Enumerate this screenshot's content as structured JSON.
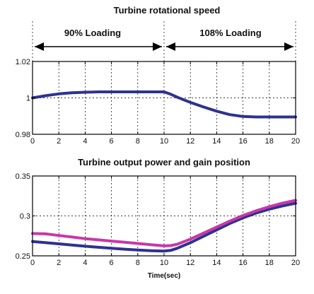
{
  "chart_data": [
    {
      "type": "line",
      "title": "Turbine rotational speed",
      "xlabel": "",
      "ylabel": "",
      "xlim": [
        0,
        20
      ],
      "ylim": [
        0.98,
        1.02
      ],
      "xticks": [
        0,
        2,
        4,
        6,
        8,
        10,
        12,
        14,
        16,
        18,
        20
      ],
      "yticks": [
        0.98,
        1,
        1.02
      ],
      "ytick_labels": [
        "0.98",
        "1",
        "1.02"
      ],
      "grid": true,
      "annotations": [
        {
          "text": "90% Loading",
          "from_x": 0,
          "to_x": 10
        },
        {
          "text": "108% Loading",
          "from_x": 10,
          "to_x": 20
        }
      ],
      "series": [
        {
          "color": "#2e3192",
          "x": [
            0,
            1,
            2,
            3,
            4,
            5,
            6,
            7,
            8,
            9,
            10,
            10.5,
            11,
            12,
            13,
            14,
            15,
            16,
            17,
            18,
            19,
            20
          ],
          "y": [
            1.0,
            1.0012,
            1.0022,
            1.0028,
            1.0031,
            1.0033,
            1.0033,
            1.0033,
            1.0033,
            1.0033,
            1.0033,
            1.002,
            1.0004,
            0.9975,
            0.995,
            0.9927,
            0.9908,
            0.9898,
            0.9895,
            0.9895,
            0.9895,
            0.9895
          ]
        }
      ]
    },
    {
      "type": "line",
      "title": "Turbine output power and gain position",
      "xlabel": "Time(sec)",
      "ylabel": "",
      "xlim": [
        0,
        20
      ],
      "ylim": [
        0.25,
        0.35
      ],
      "xticks": [
        0,
        2,
        4,
        6,
        8,
        10,
        12,
        14,
        16,
        18,
        20
      ],
      "yticks": [
        0.25,
        0.3,
        0.35
      ],
      "ytick_labels": [
        "0.25",
        "0.3",
        "0.35"
      ],
      "grid": true,
      "series": [
        {
          "color": "#2e3192",
          "x": [
            0,
            1,
            2,
            3,
            4,
            5,
            6,
            7,
            8,
            9,
            10,
            10.5,
            11,
            12,
            13,
            14,
            15,
            16,
            17,
            18,
            19,
            20
          ],
          "y": [
            0.268,
            0.2665,
            0.265,
            0.2635,
            0.262,
            0.2607,
            0.2595,
            0.2583,
            0.2573,
            0.2565,
            0.256,
            0.2568,
            0.2595,
            0.2665,
            0.2745,
            0.2825,
            0.2905,
            0.2975,
            0.3035,
            0.3085,
            0.3125,
            0.3158
          ]
        },
        {
          "color": "#c838a8",
          "x": [
            0,
            1,
            2,
            3,
            4,
            5,
            6,
            7,
            8,
            9,
            10,
            10.5,
            11,
            12,
            13,
            14,
            15,
            16,
            17,
            18,
            19,
            20
          ],
          "y": [
            0.278,
            0.2775,
            0.2755,
            0.2735,
            0.2715,
            0.27,
            0.2685,
            0.267,
            0.2655,
            0.264,
            0.2625,
            0.2628,
            0.2645,
            0.271,
            0.2785,
            0.286,
            0.2935,
            0.3005,
            0.3065,
            0.3115,
            0.316,
            0.3195
          ]
        }
      ]
    }
  ]
}
